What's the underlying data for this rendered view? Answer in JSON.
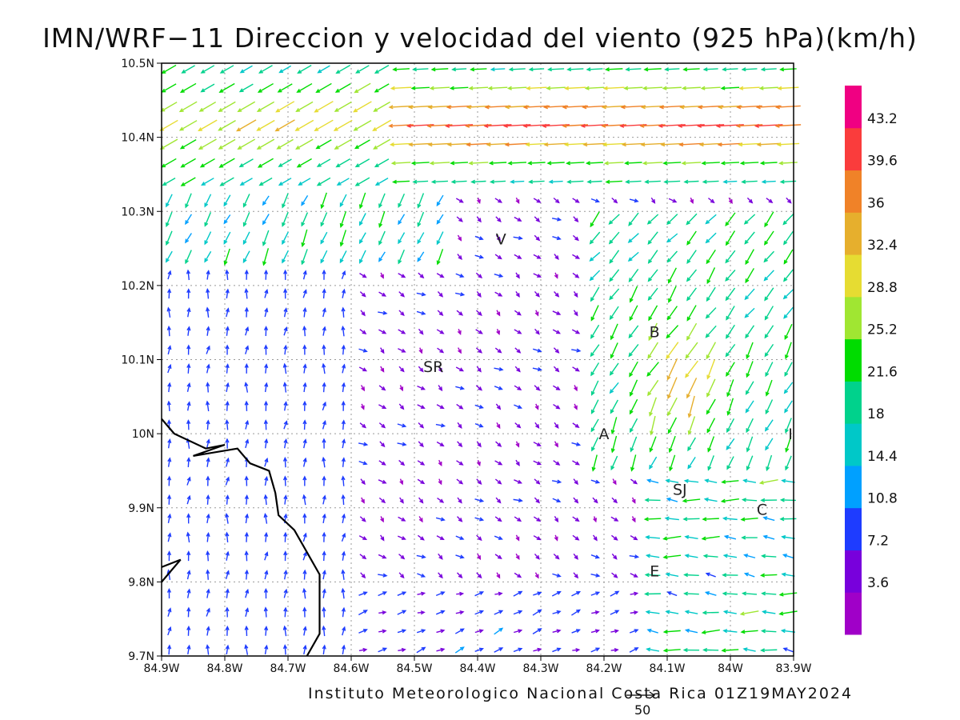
{
  "title": "IMN/WRF−11 Direccion y velocidad del viento (925 hPa)(km/h)",
  "footer": "Instituto Meteorologico Nacional Costa Rica 01Z19MAY2024",
  "reference_vector_label": "50",
  "chart_data": {
    "type": "vector-field",
    "x_axis": {
      "ticks": [
        "84.9W",
        "84.8W",
        "84.7W",
        "84.6W",
        "84.5W",
        "84.4W",
        "84.3W",
        "84.2W",
        "84.1W",
        "84W",
        "83.9W"
      ],
      "range": [
        -84.9,
        -83.9
      ]
    },
    "y_axis": {
      "ticks": [
        "9.7N",
        "9.8N",
        "9.9N",
        "10N",
        "10.1N",
        "10.2N",
        "10.3N",
        "10.4N",
        "10.5N"
      ],
      "range": [
        9.7,
        10.5
      ]
    },
    "grid": true,
    "colorbar": {
      "labels": [
        "3.6",
        "7.2",
        "10.8",
        "14.4",
        "18",
        "21.6",
        "25.2",
        "28.8",
        "32.4",
        "36",
        "39.6",
        "43.2"
      ],
      "colors": [
        "#a000c8",
        "#7800dc",
        "#1e3cff",
        "#00a0ff",
        "#00c8c8",
        "#00d28c",
        "#00dc00",
        "#a0e632",
        "#e6dc32",
        "#e6af2d",
        "#f08228",
        "#fa3c3c",
        "#f00082"
      ]
    },
    "places": [
      {
        "label": "V",
        "lon": -84.363,
        "lat": 10.263
      },
      {
        "label": "SR",
        "lon": -84.47,
        "lat": 10.091
      },
      {
        "label": "B",
        "lon": -84.12,
        "lat": 10.138
      },
      {
        "label": "A",
        "lon": -84.2,
        "lat": 10.0
      },
      {
        "label": "SJ",
        "lon": -84.08,
        "lat": 9.925
      },
      {
        "label": "C",
        "lon": -83.95,
        "lat": 9.898
      },
      {
        "label": "E",
        "lon": -84.12,
        "lat": 9.815
      },
      {
        "label": "I",
        "lon": -83.905,
        "lat": 10.0
      }
    ],
    "coastline": [
      [
        -84.9,
        10.02
      ],
      [
        -84.88,
        10.0
      ],
      [
        -84.83,
        9.98
      ],
      [
        -84.8,
        9.985
      ],
      [
        -84.85,
        9.97
      ],
      [
        -84.78,
        9.98
      ],
      [
        -84.76,
        9.96
      ],
      [
        -84.73,
        9.95
      ],
      [
        -84.72,
        9.92
      ],
      [
        -84.715,
        9.89
      ],
      [
        -84.69,
        9.87
      ],
      [
        -84.67,
        9.84
      ],
      [
        -84.65,
        9.81
      ],
      [
        -84.65,
        9.77
      ],
      [
        -84.65,
        9.73
      ],
      [
        -84.67,
        9.7
      ]
    ],
    "peninsula": [
      [
        -84.9,
        9.82
      ],
      [
        -84.87,
        9.83
      ],
      [
        -84.9,
        9.8
      ]
    ]
  }
}
